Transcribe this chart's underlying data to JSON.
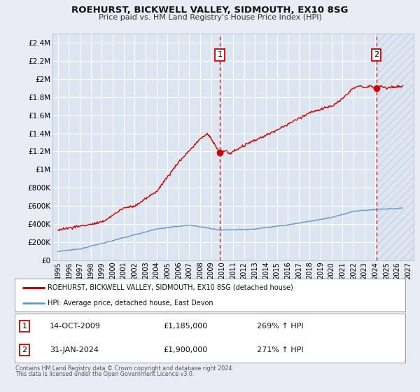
{
  "title": "ROEHURST, BICKWELL VALLEY, SIDMOUTH, EX10 8SG",
  "subtitle": "Price paid vs. HM Land Registry's House Price Index (HPI)",
  "hpi_label": "HPI: Average price, detached house, East Devon",
  "property_label": "ROEHURST, BICKWELL VALLEY, SIDMOUTH, EX10 8SG (detached house)",
  "footnote1": "Contains HM Land Registry data © Crown copyright and database right 2024.",
  "footnote2": "This data is licensed under the Open Government Licence v3.0.",
  "xlim_left": 1994.5,
  "xlim_right": 2027.5,
  "ylim_bottom": 0,
  "ylim_top": 2500000,
  "yticks": [
    0,
    200000,
    400000,
    600000,
    800000,
    1000000,
    1200000,
    1400000,
    1600000,
    1800000,
    2000000,
    2200000,
    2400000
  ],
  "bg_color": "#e8edf5",
  "plot_bg_color": "#dde6f0",
  "grid_color": "#ffffff",
  "line_color_property": "#cc0000",
  "line_color_hpi": "#6699cc",
  "marker_color": "#cc0000",
  "vline_color": "#cc0000",
  "box_color": "#cc0000",
  "hatch_color": "#c8d4e4",
  "m1_x": 2009.79,
  "m1_y": 1185000,
  "m2_x": 2024.08,
  "m2_y": 1900000,
  "hatch_start": 2024.08
}
